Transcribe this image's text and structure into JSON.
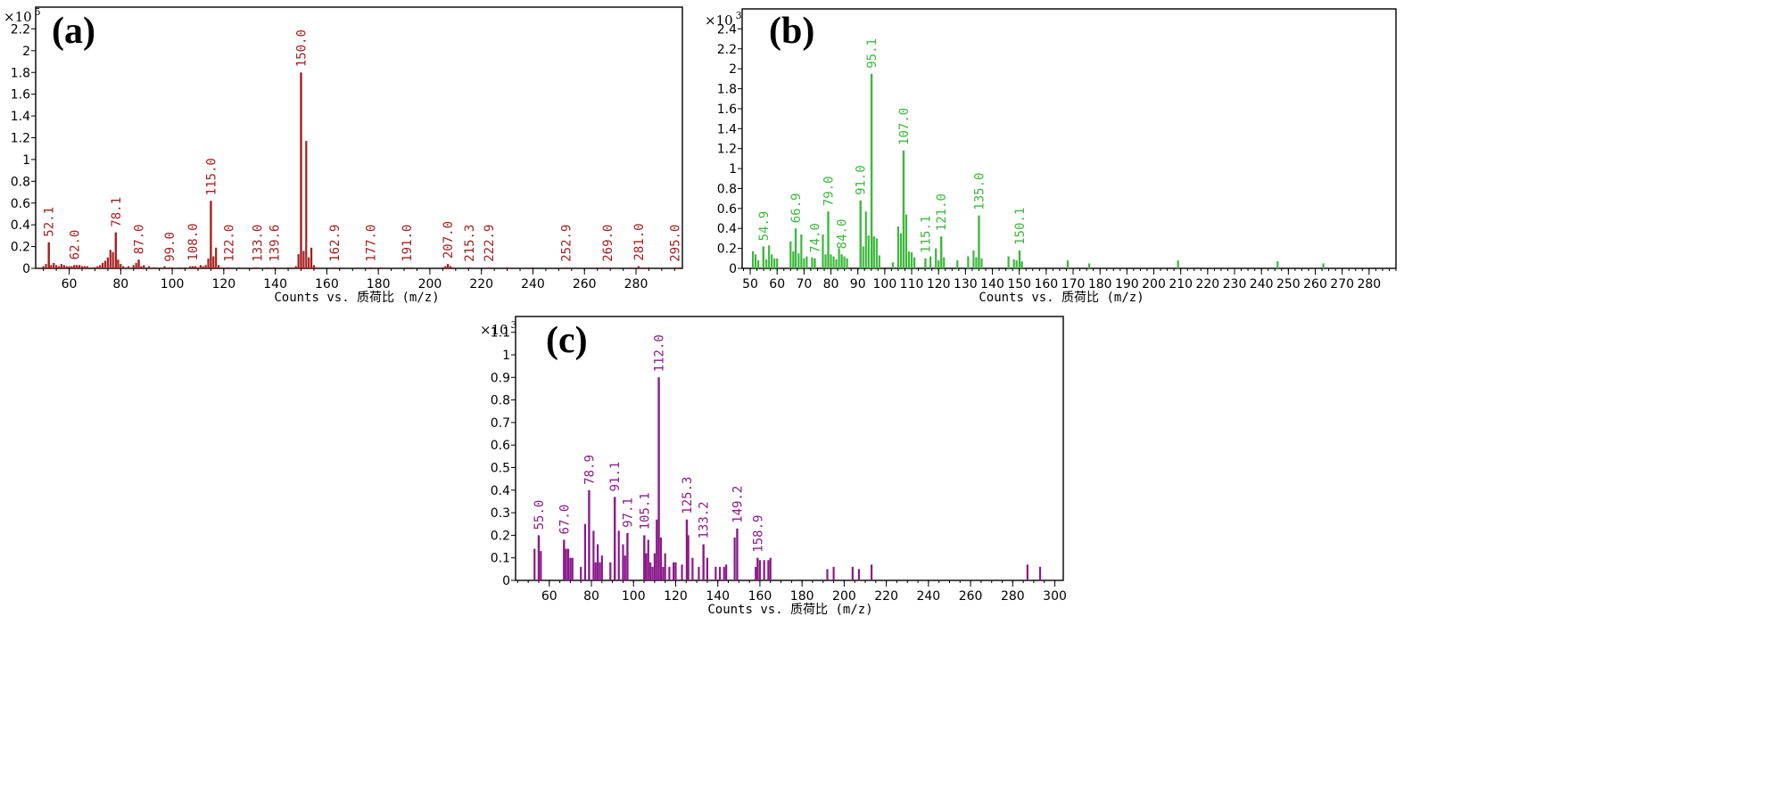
{
  "chart_data": [
    {
      "type": "bar",
      "panel_label": "(a)",
      "multiplier": {
        "base": "×10",
        "exponent": "5"
      },
      "xlabel": "Counts vs. 质荷比 (m/z)",
      "ylabel": "",
      "xlim": [
        47,
        298
      ],
      "ylim": [
        0,
        2.4
      ],
      "xticks": [
        60,
        80,
        100,
        120,
        140,
        160,
        180,
        200,
        220,
        240,
        260,
        280
      ],
      "yticks": [
        0,
        0.2,
        0.4,
        0.6,
        0.8,
        1,
        1.2,
        1.4,
        1.6,
        1.8,
        2,
        2.2
      ],
      "ytick_labels": [
        "0",
        "0.2",
        "0.4",
        "0.6",
        "0.8",
        "1",
        "1.2",
        "1.4",
        "1.6",
        "1.8",
        "2",
        "2.2"
      ],
      "color": "#a52020",
      "peaks": [
        {
          "x": 52.1,
          "y": 0.24,
          "label": "52.1"
        },
        {
          "x": 62.0,
          "y": 0.03,
          "label": "62.0"
        },
        {
          "x": 78.1,
          "y": 0.33,
          "label": "78.1"
        },
        {
          "x": 87.0,
          "y": 0.08,
          "label": "87.0"
        },
        {
          "x": 99.0,
          "y": 0.01,
          "label": "99.0"
        },
        {
          "x": 108.0,
          "y": 0.02,
          "label": "108.0"
        },
        {
          "x": 115.0,
          "y": 0.62,
          "label": "115.0"
        },
        {
          "x": 122.0,
          "y": 0.01,
          "label": "122.0"
        },
        {
          "x": 133.0,
          "y": 0.01,
          "label": "133.0"
        },
        {
          "x": 139.6,
          "y": 0.01,
          "label": "139.6"
        },
        {
          "x": 150.0,
          "y": 1.8,
          "label": "150.0"
        },
        {
          "x": 162.9,
          "y": 0.01,
          "label": "162.9"
        },
        {
          "x": 177.0,
          "y": 0.01,
          "label": "177.0"
        },
        {
          "x": 191.0,
          "y": 0.01,
          "label": "191.0"
        },
        {
          "x": 207.0,
          "y": 0.04,
          "label": "207.0"
        },
        {
          "x": 215.3,
          "y": 0.01,
          "label": "215.3"
        },
        {
          "x": 222.9,
          "y": 0.01,
          "label": "222.9"
        },
        {
          "x": 252.9,
          "y": 0.01,
          "label": "252.9"
        },
        {
          "x": 269.0,
          "y": 0.01,
          "label": "269.0"
        },
        {
          "x": 281.0,
          "y": 0.02,
          "label": "281.0"
        },
        {
          "x": 295.0,
          "y": 0.01,
          "label": "295.0"
        }
      ],
      "minor_peaks": [
        [
          50,
          0.02
        ],
        [
          51,
          0.04
        ],
        [
          53,
          0.03
        ],
        [
          54,
          0.05
        ],
        [
          55,
          0.03
        ],
        [
          56,
          0.02
        ],
        [
          57,
          0.04
        ],
        [
          58,
          0.03
        ],
        [
          59,
          0.02
        ],
        [
          60,
          0.02
        ],
        [
          61,
          0.02
        ],
        [
          63,
          0.03
        ],
        [
          64,
          0.03
        ],
        [
          65,
          0.02
        ],
        [
          66,
          0.02
        ],
        [
          67,
          0.02
        ],
        [
          69,
          0.01
        ],
        [
          70,
          0.01
        ],
        [
          71,
          0.02
        ],
        [
          72,
          0.03
        ],
        [
          73,
          0.05
        ],
        [
          74,
          0.07
        ],
        [
          75,
          0.1
        ],
        [
          76,
          0.17
        ],
        [
          77,
          0.15
        ],
        [
          79,
          0.08
        ],
        [
          80,
          0.04
        ],
        [
          81,
          0.02
        ],
        [
          83,
          0.02
        ],
        [
          85,
          0.03
        ],
        [
          86,
          0.05
        ],
        [
          88,
          0.02
        ],
        [
          89,
          0.03
        ],
        [
          91,
          0.02
        ],
        [
          93,
          0.01
        ],
        [
          97,
          0.02
        ],
        [
          100,
          0.01
        ],
        [
          103,
          0.01
        ],
        [
          105,
          0.01
        ],
        [
          107,
          0.02
        ],
        [
          109,
          0.02
        ],
        [
          110,
          0.01
        ],
        [
          111,
          0.03
        ],
        [
          112,
          0.02
        ],
        [
          113,
          0.03
        ],
        [
          114,
          0.09
        ],
        [
          116,
          0.11
        ],
        [
          117,
          0.19
        ],
        [
          118,
          0.03
        ],
        [
          119,
          0.01
        ],
        [
          121,
          0.01
        ],
        [
          126,
          0.01
        ],
        [
          132,
          0.01
        ],
        [
          137,
          0.01
        ],
        [
          145,
          0.01
        ],
        [
          148,
          0.02
        ],
        [
          149,
          0.13
        ],
        [
          151,
          0.16
        ],
        [
          152,
          1.17
        ],
        [
          153,
          0.1
        ],
        [
          154,
          0.19
        ],
        [
          155,
          0.03
        ],
        [
          156,
          0.01
        ],
        [
          165,
          0.01
        ],
        [
          181,
          0.01
        ],
        [
          193,
          0.01
        ],
        [
          205,
          0.01
        ],
        [
          206,
          0.02
        ],
        [
          208,
          0.02
        ],
        [
          209,
          0.01
        ],
        [
          230,
          0.01
        ],
        [
          240,
          0.01
        ],
        [
          265,
          0.01
        ],
        [
          267,
          0.01
        ],
        [
          278,
          0.01
        ],
        [
          283,
          0.01
        ],
        [
          285,
          0.01
        ],
        [
          297,
          0.01
        ]
      ]
    },
    {
      "type": "bar",
      "panel_label": "(b)",
      "multiplier": {
        "base": "×10",
        "exponent": "3"
      },
      "xlabel": "Counts vs. 质荷比 (m/z)",
      "ylabel": "",
      "xlim": [
        47,
        290
      ],
      "ylim": [
        0,
        2.6
      ],
      "xticks": [
        50,
        60,
        70,
        80,
        90,
        100,
        110,
        120,
        130,
        140,
        150,
        160,
        170,
        180,
        190,
        200,
        210,
        220,
        230,
        240,
        250,
        260,
        270,
        280
      ],
      "yticks": [
        0,
        0.2,
        0.4,
        0.6,
        0.8,
        1,
        1.2,
        1.4,
        1.6,
        1.8,
        2,
        2.2,
        2.4
      ],
      "ytick_labels": [
        "0",
        "0.2",
        "0.4",
        "0.6",
        "0.8",
        "1",
        "1.2",
        "1.4",
        "1.6",
        "1.8",
        "2",
        "2.2",
        "2.4"
      ],
      "color": "#3cb83c",
      "peaks": [
        {
          "x": 54.9,
          "y": 0.22,
          "label": "54.9"
        },
        {
          "x": 66.9,
          "y": 0.4,
          "label": "66.9"
        },
        {
          "x": 74.0,
          "y": 0.1,
          "label": "74.0"
        },
        {
          "x": 79.0,
          "y": 0.57,
          "label": "79.0"
        },
        {
          "x": 84.0,
          "y": 0.14,
          "label": "84.0"
        },
        {
          "x": 91.0,
          "y": 0.68,
          "label": "91.0"
        },
        {
          "x": 95.1,
          "y": 1.95,
          "label": "95.1"
        },
        {
          "x": 107.0,
          "y": 1.18,
          "label": "107.0"
        },
        {
          "x": 115.1,
          "y": 0.1,
          "label": "115.1"
        },
        {
          "x": 121.0,
          "y": 0.32,
          "label": "121.0"
        },
        {
          "x": 135.0,
          "y": 0.53,
          "label": "135.0"
        },
        {
          "x": 150.1,
          "y": 0.18,
          "label": "150.1"
        }
      ],
      "minor_peaks": [
        [
          51,
          0.17
        ],
        [
          52,
          0.14
        ],
        [
          53,
          0.08
        ],
        [
          56,
          0.09
        ],
        [
          57,
          0.23
        ],
        [
          58,
          0.14
        ],
        [
          59,
          0.1
        ],
        [
          60,
          0.1
        ],
        [
          65,
          0.27
        ],
        [
          66,
          0.17
        ],
        [
          68,
          0.15
        ],
        [
          69,
          0.34
        ],
        [
          70,
          0.1
        ],
        [
          71,
          0.12
        ],
        [
          73,
          0.11
        ],
        [
          77,
          0.34
        ],
        [
          78,
          0.14
        ],
        [
          80,
          0.14
        ],
        [
          81,
          0.12
        ],
        [
          82,
          0.09
        ],
        [
          83,
          0.2
        ],
        [
          85,
          0.12
        ],
        [
          86,
          0.1
        ],
        [
          92,
          0.22
        ],
        [
          93,
          0.57
        ],
        [
          94,
          0.33
        ],
        [
          96,
          0.32
        ],
        [
          97,
          0.3
        ],
        [
          98,
          0.13
        ],
        [
          103,
          0.06
        ],
        [
          105,
          0.42
        ],
        [
          106,
          0.35
        ],
        [
          108,
          0.54
        ],
        [
          109,
          0.17
        ],
        [
          110,
          0.16
        ],
        [
          111,
          0.11
        ],
        [
          117,
          0.12
        ],
        [
          119,
          0.2
        ],
        [
          120,
          0.08
        ],
        [
          122,
          0.11
        ],
        [
          127,
          0.08
        ],
        [
          131,
          0.12
        ],
        [
          133,
          0.18
        ],
        [
          134,
          0.11
        ],
        [
          136,
          0.1
        ],
        [
          146,
          0.12
        ],
        [
          148,
          0.09
        ],
        [
          149,
          0.08
        ],
        [
          151,
          0.07
        ],
        [
          168,
          0.08
        ],
        [
          176,
          0.05
        ],
        [
          209,
          0.08
        ],
        [
          246,
          0.07
        ],
        [
          263,
          0.05
        ]
      ]
    },
    {
      "type": "bar",
      "panel_label": "(c)",
      "multiplier": {
        "base": "×10",
        "exponent": "3"
      },
      "xlabel": "Counts vs. 质荷比 (m/z)",
      "ylabel": "",
      "xlim": [
        44,
        304
      ],
      "ylim": [
        0,
        1.17
      ],
      "xticks": [
        60,
        80,
        100,
        120,
        140,
        160,
        180,
        200,
        220,
        240,
        260,
        280,
        300
      ],
      "yticks": [
        0,
        0.1,
        0.2,
        0.3,
        0.4,
        0.5,
        0.6,
        0.7,
        0.8,
        0.9,
        1,
        1.1
      ],
      "ytick_labels": [
        "0",
        "0.1",
        "0.2",
        "0.3",
        "0.4",
        "0.5",
        "0.6",
        "0.7",
        "0.8",
        "0.9",
        "1",
        "1.1"
      ],
      "color": "#8b1a8b",
      "peaks": [
        {
          "x": 55.0,
          "y": 0.2,
          "label": "55.0"
        },
        {
          "x": 67.0,
          "y": 0.18,
          "label": "67.0"
        },
        {
          "x": 78.9,
          "y": 0.4,
          "label": "78.9"
        },
        {
          "x": 91.1,
          "y": 0.37,
          "label": "91.1"
        },
        {
          "x": 97.1,
          "y": 0.21,
          "label": "97.1"
        },
        {
          "x": 105.1,
          "y": 0.2,
          "label": "105.1"
        },
        {
          "x": 112.0,
          "y": 0.9,
          "label": "112.0"
        },
        {
          "x": 125.3,
          "y": 0.27,
          "label": "125.3"
        },
        {
          "x": 133.2,
          "y": 0.16,
          "label": "133.2"
        },
        {
          "x": 149.2,
          "y": 0.23,
          "label": "149.2"
        },
        {
          "x": 158.9,
          "y": 0.1,
          "label": "158.9"
        }
      ],
      "minor_peaks": [
        [
          53,
          0.14
        ],
        [
          56,
          0.13
        ],
        [
          68,
          0.14
        ],
        [
          69,
          0.14
        ],
        [
          70,
          0.1
        ],
        [
          71,
          0.1
        ],
        [
          75,
          0.06
        ],
        [
          77,
          0.25
        ],
        [
          81,
          0.22
        ],
        [
          82,
          0.08
        ],
        [
          83,
          0.16
        ],
        [
          84,
          0.08
        ],
        [
          85,
          0.11
        ],
        [
          89,
          0.08
        ],
        [
          93,
          0.22
        ],
        [
          95,
          0.16
        ],
        [
          96,
          0.11
        ],
        [
          106,
          0.12
        ],
        [
          107,
          0.18
        ],
        [
          108,
          0.08
        ],
        [
          109,
          0.06
        ],
        [
          110,
          0.12
        ],
        [
          111,
          0.27
        ],
        [
          113,
          0.19
        ],
        [
          114,
          0.06
        ],
        [
          115,
          0.12
        ],
        [
          117,
          0.06
        ],
        [
          119,
          0.08
        ],
        [
          120,
          0.08
        ],
        [
          123,
          0.07
        ],
        [
          126,
          0.2
        ],
        [
          128,
          0.1
        ],
        [
          131,
          0.06
        ],
        [
          135,
          0.1
        ],
        [
          139,
          0.06
        ],
        [
          141,
          0.06
        ],
        [
          143,
          0.06
        ],
        [
          144,
          0.07
        ],
        [
          148,
          0.19
        ],
        [
          158,
          0.06
        ],
        [
          160,
          0.09
        ],
        [
          162,
          0.09
        ],
        [
          164,
          0.09
        ],
        [
          165,
          0.1
        ],
        [
          192,
          0.05
        ],
        [
          195,
          0.06
        ],
        [
          204,
          0.06
        ],
        [
          207,
          0.05
        ],
        [
          213,
          0.07
        ],
        [
          287,
          0.07
        ],
        [
          293,
          0.06
        ]
      ]
    }
  ]
}
